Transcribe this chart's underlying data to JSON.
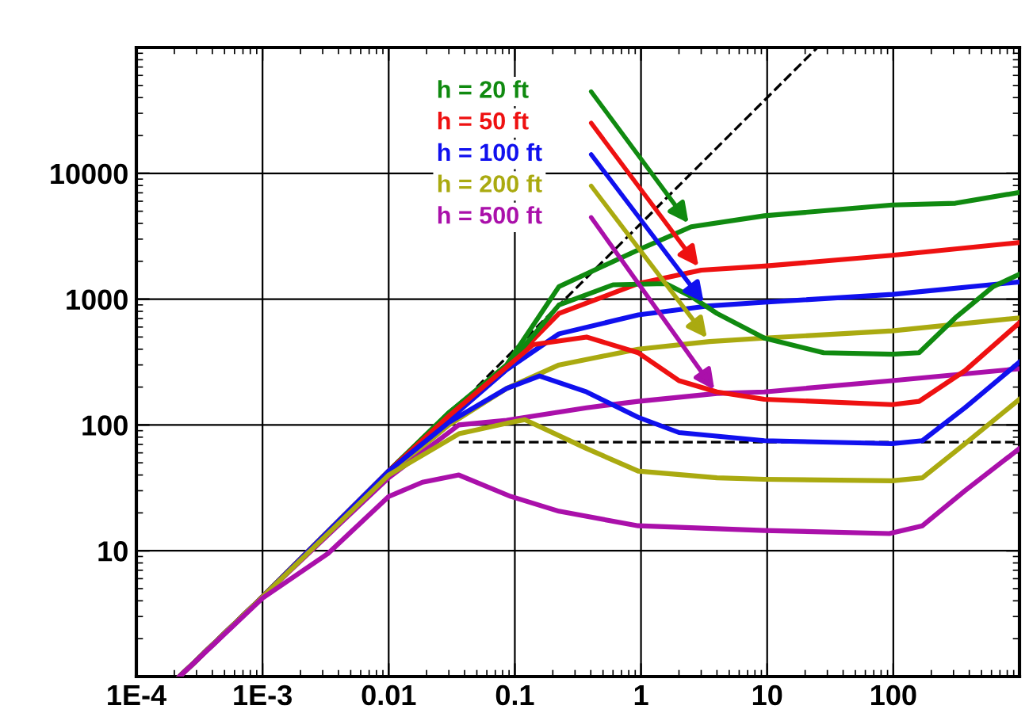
{
  "chart_data": {
    "type": "line",
    "log": "xy",
    "xlim": [
      0.0001,
      1000
    ],
    "ylim": [
      1,
      100000
    ],
    "xticks": [
      {
        "value": 0.0001,
        "label": "1E-4"
      },
      {
        "value": 0.001,
        "label": "1E-3"
      },
      0.01,
      0.1,
      1,
      10,
      100
    ],
    "yticks": [
      10,
      100,
      1000,
      10000
    ],
    "grid": true,
    "legend": "top",
    "line_style": "solid",
    "marker": "none",
    "series": [
      {
        "name": "h = 20 ft",
        "color": "#108a10",
        "x": [
          0.00022,
          0.001,
          0.01,
          0.03,
          0.086,
          0.224,
          0.95,
          2.5,
          9.5,
          98,
          310,
          1000
        ],
        "values": [
          1,
          4.3,
          43,
          125,
          300,
          1260,
          2460,
          3760,
          4600,
          5600,
          5780,
          7060
        ]
      },
      {
        "name": "h = 50 ft",
        "color": "#ee1111",
        "x": [
          0.00022,
          0.001,
          0.01,
          0.03,
          0.086,
          0.224,
          0.95,
          3.0,
          9.5,
          98,
          1000
        ],
        "values": [
          1,
          4.3,
          43,
          120,
          290,
          770,
          1330,
          1700,
          1830,
          2230,
          2820
        ]
      },
      {
        "name": "h = 100 ft",
        "color": "#1010ee",
        "x": [
          0.00022,
          0.001,
          0.01,
          0.03,
          0.086,
          0.224,
          0.95,
          3.3,
          9.5,
          98,
          1000
        ],
        "values": [
          1,
          4.3,
          43,
          110,
          275,
          530,
          750,
          880,
          945,
          1090,
          1370
        ]
      },
      {
        "name": "h = 200 ft",
        "color": "#aaaa10",
        "x": [
          0.00022,
          0.001,
          0.01,
          0.03,
          0.086,
          0.224,
          0.95,
          3.5,
          9.5,
          98,
          1000
        ],
        "values": [
          1,
          4.3,
          40,
          100,
          195,
          300,
          400,
          460,
          490,
          560,
          710
        ]
      },
      {
        "name": "h = 500 ft",
        "color": "#aa10aa",
        "x": [
          0.00022,
          0.001,
          0.01,
          0.036,
          0.086,
          0.37,
          0.95,
          4.0,
          9.5,
          98,
          1000
        ],
        "values": [
          1,
          4.3,
          38,
          100,
          109,
          137,
          154,
          178,
          183,
          225,
          280
        ]
      },
      {
        "color": "#108a10",
        "x": [
          0.00022,
          0.001,
          0.01,
          0.03,
          0.086,
          0.224,
          0.6,
          1.57,
          2.5,
          4.0,
          9.5,
          28,
          98,
          160,
          310,
          620,
          1000
        ],
        "values": [
          1,
          4.3,
          43,
          125,
          290,
          900,
          1300,
          1330,
          1050,
          770,
          490,
          375,
          365,
          375,
          710,
          1260,
          1580
        ]
      },
      {
        "color": "#ee1111",
        "x": [
          0.00022,
          0.001,
          0.01,
          0.03,
          0.14,
          0.37,
          0.95,
          2.0,
          4.0,
          9.5,
          98,
          160,
          370,
          1000
        ],
        "values": [
          1,
          4.3,
          43,
          118,
          435,
          500,
          375,
          225,
          183,
          160,
          145,
          154,
          270,
          650
        ]
      },
      {
        "color": "#1010ee",
        "x": [
          0.00022,
          0.001,
          0.01,
          0.03,
          0.086,
          0.157,
          0.37,
          0.95,
          2.0,
          9.5,
          98,
          170,
          370,
          1000
        ],
        "values": [
          1,
          4.3,
          43,
          105,
          195,
          245,
          183,
          115,
          87,
          75,
          71,
          75,
          137,
          316
        ]
      },
      {
        "color": "#aaaa10",
        "x": [
          0.00022,
          0.001,
          0.01,
          0.036,
          0.086,
          0.12,
          0.37,
          0.95,
          4.0,
          9.5,
          98,
          170,
          370,
          1000
        ],
        "values": [
          1,
          4.3,
          40,
          85,
          103,
          110,
          65,
          43,
          38,
          37,
          36,
          38,
          71,
          160
        ]
      },
      {
        "color": "#aa10aa",
        "x": [
          0.00022,
          0.001,
          0.0033,
          0.01,
          0.0185,
          0.036,
          0.093,
          0.224,
          0.95,
          9.5,
          93,
          170,
          370,
          1000
        ],
        "values": [
          1,
          4.2,
          9.5,
          27,
          35,
          40,
          27,
          20.6,
          15.8,
          14.5,
          13.7,
          15.8,
          30,
          65
        ]
      },
      {
        "color": "#000000",
        "line_style": "dashed",
        "x": [
          0.05,
          25
        ],
        "values": [
          200,
          100000
        ]
      },
      {
        "color": "#000000",
        "line_style": "dashed",
        "x": [
          0.036,
          1000
        ],
        "values": [
          73,
          73
        ]
      }
    ]
  }
}
